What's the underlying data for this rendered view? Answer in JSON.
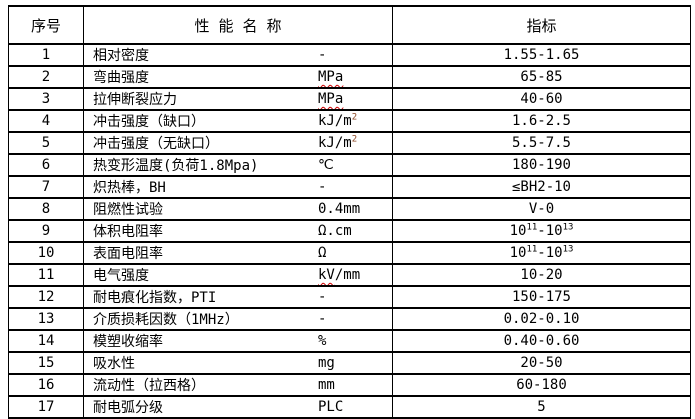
{
  "colors": {
    "background": "#ffffff",
    "text": "#000000",
    "border": "#000000",
    "spellcheck_wavy": "#cc0000",
    "unit_superscript": "#8a4420"
  },
  "table": {
    "headers": [
      "序号",
      "性 能 名 称",
      "指标"
    ],
    "rows": [
      {
        "no": "1",
        "name": "相对密度",
        "unit": [
          {
            "text": "-"
          }
        ],
        "value": [
          {
            "text": "1.55-1.65"
          }
        ]
      },
      {
        "no": "2",
        "name": "弯曲强度",
        "unit": [
          {
            "text": "MPa",
            "wavy": true
          }
        ],
        "value": [
          {
            "text": "65-85"
          }
        ]
      },
      {
        "no": "3",
        "name": "拉伸断裂应力",
        "unit": [
          {
            "text": "MPa",
            "wavy": true
          }
        ],
        "value": [
          {
            "text": "40-60"
          }
        ]
      },
      {
        "no": "4",
        "name": "冲击强度（缺口）",
        "unit": [
          {
            "text": "kJ/m"
          },
          {
            "text": "2",
            "sup": true,
            "color": "#8a4420"
          }
        ],
        "value": [
          {
            "text": "1.6-2.5"
          }
        ]
      },
      {
        "no": "5",
        "name": "冲击强度（无缺口）",
        "unit": [
          {
            "text": "kJ/m"
          },
          {
            "text": "2",
            "sup": true,
            "color": "#8a4420"
          }
        ],
        "value": [
          {
            "text": "5.5-7.5"
          }
        ]
      },
      {
        "no": "6",
        "name": "热变形温度(负荷1.8Mpa)",
        "unit": [
          {
            "text": "℃"
          }
        ],
        "value": [
          {
            "text": "180-190"
          }
        ]
      },
      {
        "no": "7",
        "name": "炽热棒，BH",
        "unit": [
          {
            "text": "-"
          }
        ],
        "value": [
          {
            "text": "≤BH2-10"
          }
        ]
      },
      {
        "no": "8",
        "name": "阻燃性试验",
        "unit": [
          {
            "text": "0.4mm"
          }
        ],
        "value": [
          {
            "text": "V-0"
          }
        ]
      },
      {
        "no": "9",
        "name": "体积电阻率",
        "unit": [
          {
            "text": "Ω.cm"
          }
        ],
        "value": [
          {
            "text": "10"
          },
          {
            "text": "11",
            "sup": true
          },
          {
            "text": "-10"
          },
          {
            "text": "13",
            "sup": true
          }
        ]
      },
      {
        "no": "10",
        "name": "表面电阻率",
        "unit": [
          {
            "text": "Ω"
          }
        ],
        "value": [
          {
            "text": "10"
          },
          {
            "text": "11",
            "sup": true
          },
          {
            "text": "-10"
          },
          {
            "text": "13",
            "sup": true
          }
        ]
      },
      {
        "no": "11",
        "name": "电气强度",
        "unit": [
          {
            "text": "kV",
            "wavy": true
          },
          {
            "text": "/mm"
          }
        ],
        "value": [
          {
            "text": "10-20"
          }
        ]
      },
      {
        "no": "12",
        "name": "耐电痕化指数，PTI",
        "unit": [
          {
            "text": "-"
          }
        ],
        "value": [
          {
            "text": "150-175"
          }
        ]
      },
      {
        "no": "13",
        "name": "介质损耗因数（1MHz）",
        "unit": [
          {
            "text": "-"
          }
        ],
        "value": [
          {
            "text": "0.02-0.10"
          }
        ]
      },
      {
        "no": "14",
        "name": "模塑收缩率",
        "unit": [
          {
            "text": "%"
          }
        ],
        "value": [
          {
            "text": "0.40-0.60"
          }
        ]
      },
      {
        "no": "15",
        "name": "吸水性",
        "unit": [
          {
            "text": "mg"
          }
        ],
        "value": [
          {
            "text": "20-50"
          }
        ]
      },
      {
        "no": "16",
        "name": "流动性（拉西格）",
        "unit": [
          {
            "text": "mm"
          }
        ],
        "value": [
          {
            "text": "60-180"
          }
        ]
      },
      {
        "no": "17",
        "name": "耐电弧分级",
        "unit": [
          {
            "text": "PLC"
          }
        ],
        "value": [
          {
            "text": "5"
          }
        ]
      }
    ]
  }
}
